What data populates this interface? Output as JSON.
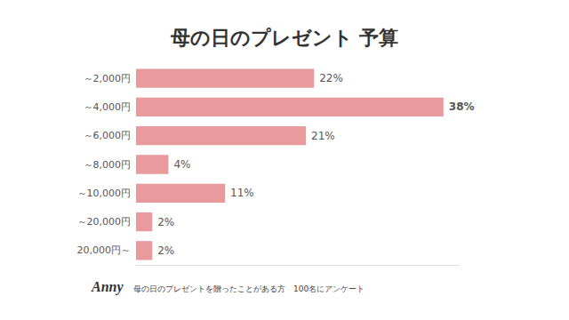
{
  "chart_data": {
    "type": "bar",
    "title": "母の日のプレゼント 予算",
    "orientation": "horizontal",
    "categories": [
      "～2,000円",
      "～4,000円",
      "～6,000円",
      "～8,000円",
      "～10,000円",
      "～20,000円",
      "20,000円～"
    ],
    "values": [
      22,
      38,
      21,
      4,
      11,
      2,
      2
    ],
    "value_labels": [
      "22%",
      "38%",
      "21%",
      "4%",
      "11%",
      "2%",
      "2%"
    ],
    "data_labels": true,
    "color": "#e99a9c",
    "xlim": [
      0,
      40
    ],
    "grid": false,
    "tick_labels": "y",
    "annotations": [
      "Anny",
      "母の日のプレゼントを贈ったことがある方　100名にアンケート"
    ]
  }
}
